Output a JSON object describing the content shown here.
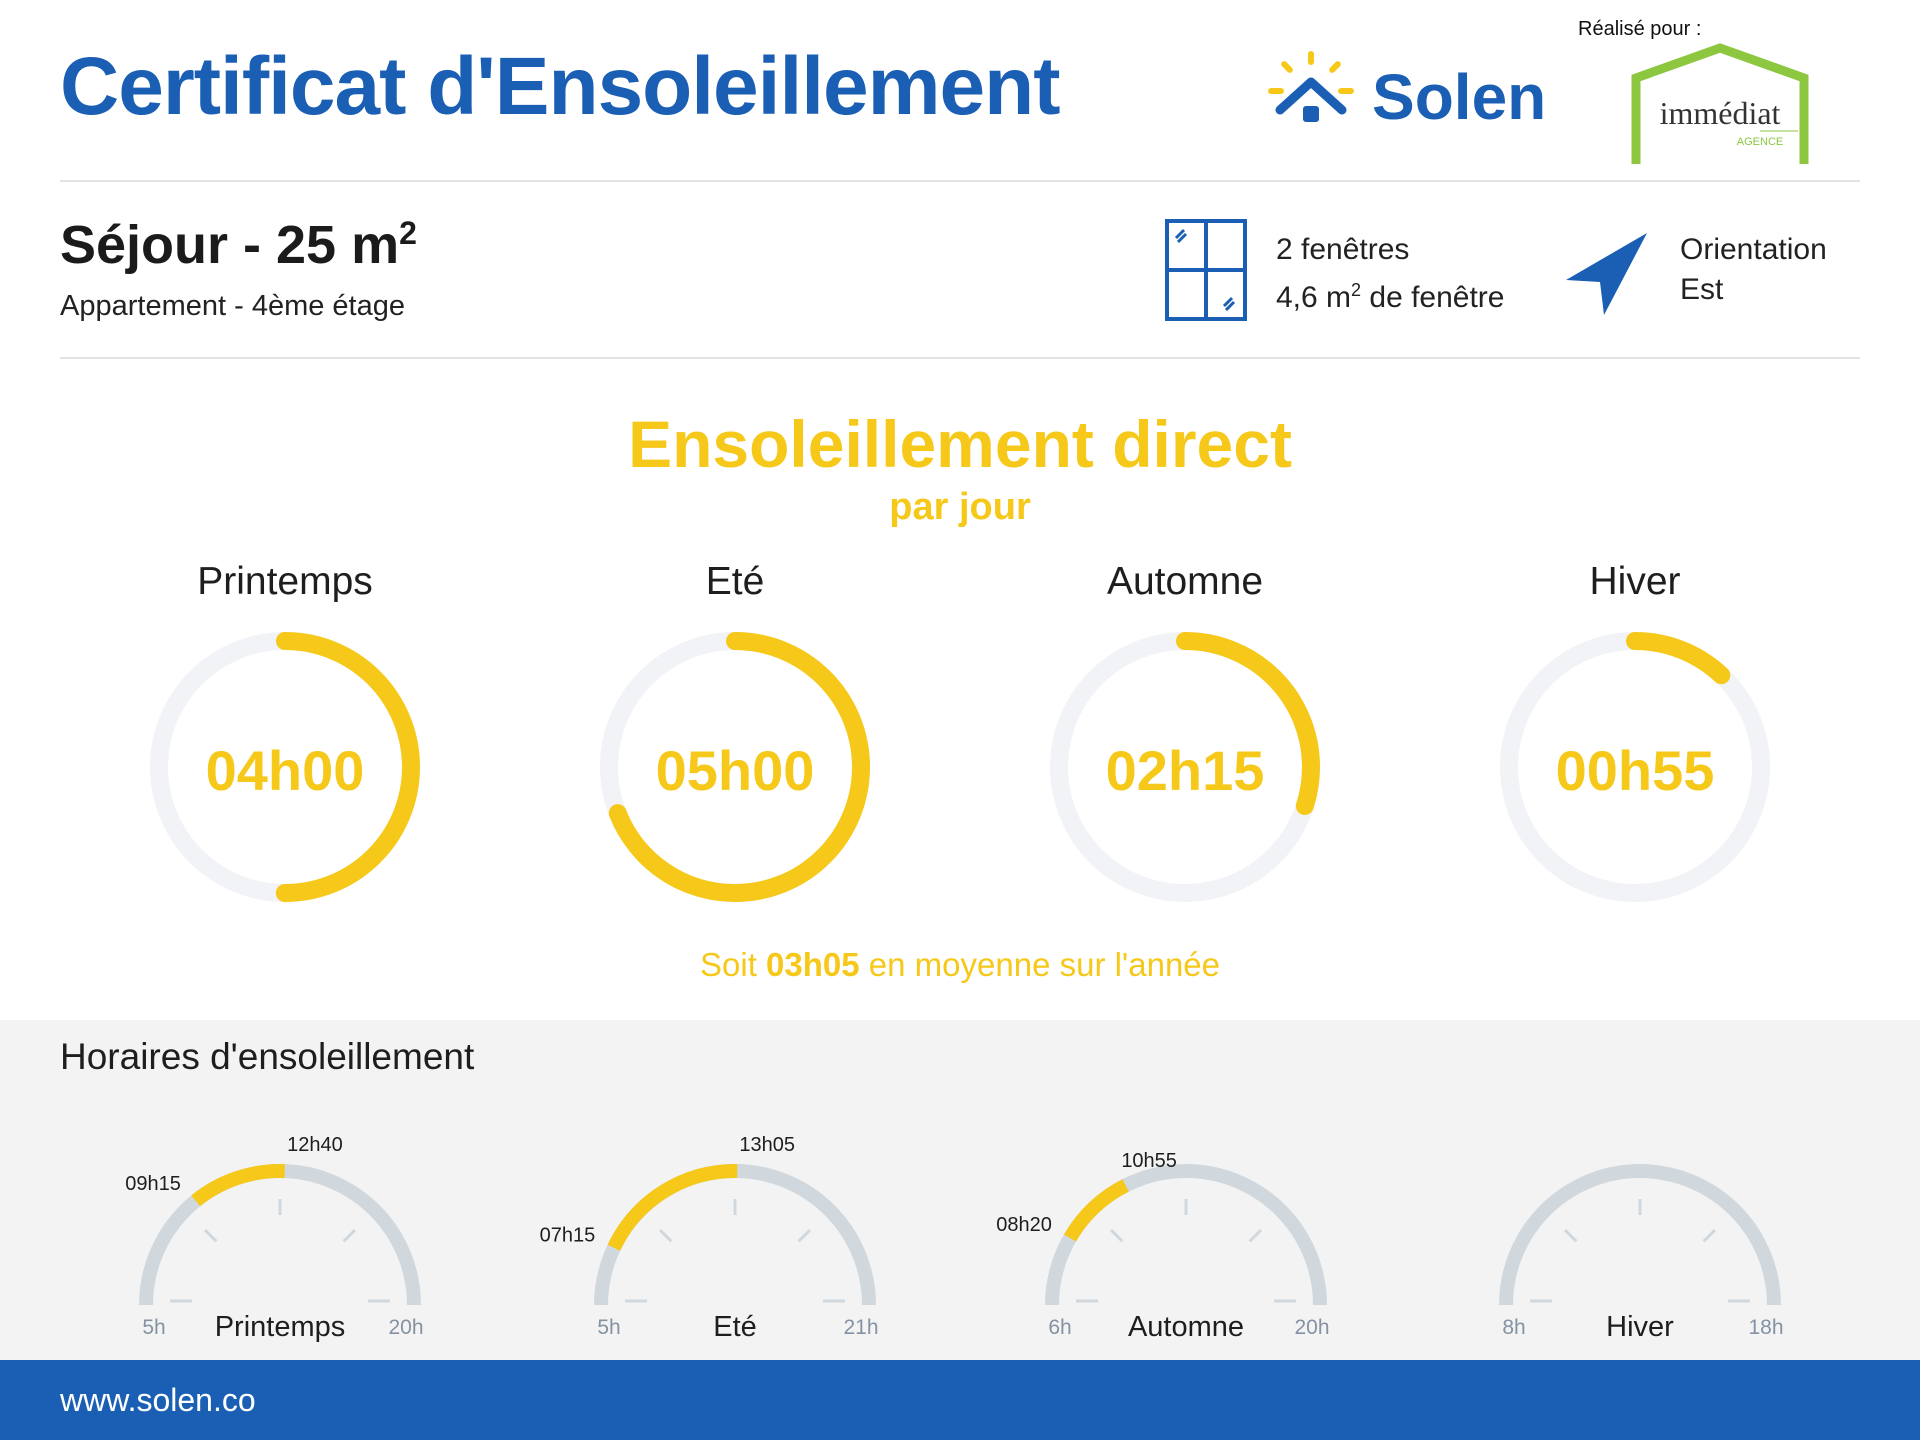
{
  "header": {
    "title": "Certificat d'Ensoleillement",
    "brand": "Solen",
    "made_for": "Réalisé pour :",
    "agency_logo_text": "immédiat",
    "agency_logo_subtext": "AGENCE"
  },
  "room": {
    "title": "Séjour - 25 m",
    "title_sup": "2",
    "subtitle": "Appartement - 4ème étage",
    "windows_line1": "2 fenêtres",
    "windows_line2_a": "4,6 m",
    "windows_line2_sup": "2",
    "windows_line2_b": " de fenêtre",
    "orientation_label": "Orientation",
    "orientation_value": "Est"
  },
  "sunshine": {
    "title": "Ensoleillement direct",
    "subtitle": "par jour",
    "seasons": [
      {
        "name": "Printemps",
        "value": "04h00",
        "fraction": 0.5
      },
      {
        "name": "Eté",
        "value": "05h00",
        "fraction": 0.69
      },
      {
        "name": "Automne",
        "value": "02h15",
        "fraction": 0.3
      },
      {
        "name": "Hiver",
        "value": "00h55",
        "fraction": 0.12
      }
    ],
    "average_prefix": "Soit ",
    "average_value": "03h05",
    "average_suffix": " en moyenne sur l'année"
  },
  "hours": {
    "title": "Horaires d'ensoleillement",
    "gauges": [
      {
        "name": "Printemps",
        "min_label": "5h",
        "max_label": "20h",
        "start": "09h15",
        "end": "12h40",
        "min": 5,
        "max": 20,
        "start_h": 9.25,
        "end_h": 12.667
      },
      {
        "name": "Eté",
        "min_label": "5h",
        "max_label": "21h",
        "start": "07h15",
        "end": "13h05",
        "min": 5,
        "max": 21,
        "start_h": 7.25,
        "end_h": 13.083
      },
      {
        "name": "Automne",
        "min_label": "6h",
        "max_label": "20h",
        "start": "08h20",
        "end": "10h55",
        "min": 6,
        "max": 20,
        "start_h": 8.333,
        "end_h": 10.917
      },
      {
        "name": "Hiver",
        "min_label": "8h",
        "max_label": "18h",
        "start": "",
        "end": "",
        "min": 8,
        "max": 18,
        "start_h": null,
        "end_h": null
      }
    ]
  },
  "footer": {
    "url": "www.solen.co"
  },
  "colors": {
    "blue": "#1a5fb4",
    "yellow": "#f6c81a",
    "ring_bg": "#f2f3f6",
    "gauge_bg": "#d0d8dd",
    "agency_green": "#8dc63f"
  }
}
